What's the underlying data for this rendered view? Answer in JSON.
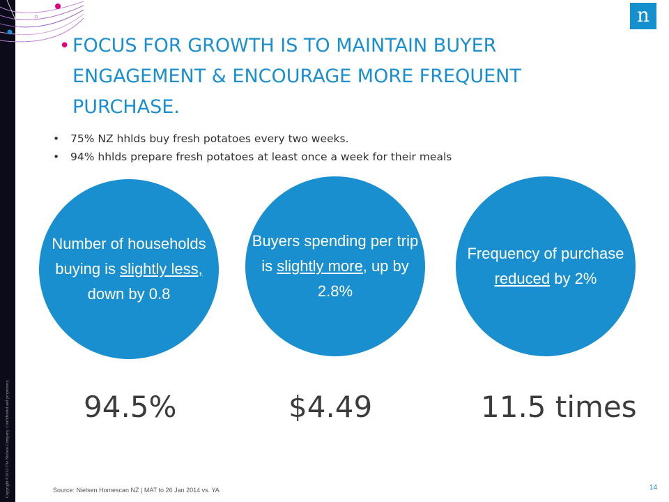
{
  "logo": {
    "letter": "n"
  },
  "copyright": "Copyright ©2012 The Nielsen Company. Confidential and proprietary.",
  "title": "FOCUS FOR GROWTH IS TO MAINTAIN BUYER ENGAGEMENT & ENCOURAGE MORE FREQUENT PURCHASE.",
  "bullets": [
    "75% NZ hhlds buy fresh potatoes every two weeks.",
    "94% hhlds prepare fresh potatoes at least once a week for their meals"
  ],
  "circles": [
    {
      "pre": "Number of households buying is ",
      "underlined": "slightly less,",
      "post": " down by 0.8"
    },
    {
      "pre": "Buyers spending per trip is ",
      "underlined": "slightly more",
      "post": ", up by 2.8%"
    },
    {
      "pre": "Frequency of purchase ",
      "underlined": "reduced",
      "post": " by 2%"
    }
  ],
  "metrics": [
    "94.5%",
    "$4.49",
    "11.5 times"
  ],
  "source": "Source: Nielsen Homescan NZ | MAT to 26 Jan 2014 vs. YA",
  "page_number": "14",
  "colors": {
    "accent_blue": "#1a8fcf",
    "bullet_magenta": "#e0007a",
    "strip_dark": "#0b0b1a"
  }
}
